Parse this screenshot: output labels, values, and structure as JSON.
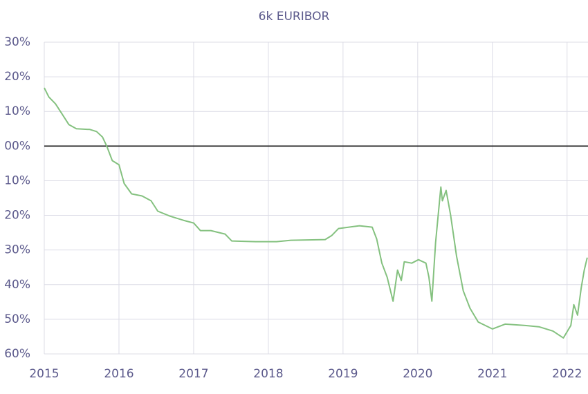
{
  "chart_data": {
    "type": "line",
    "title": "6k EURIBOR",
    "x": [
      2015.0,
      2015.06,
      2015.15,
      2015.24,
      2015.33,
      2015.43,
      2015.61,
      2015.7,
      2015.78,
      2015.84,
      2015.91,
      2016.0,
      2016.07,
      2016.17,
      2016.31,
      2016.43,
      2016.52,
      2016.68,
      2016.86,
      2017.0,
      2017.09,
      2017.23,
      2017.42,
      2017.51,
      2017.83,
      2018.11,
      2018.3,
      2018.76,
      2018.85,
      2018.94,
      2019.22,
      2019.39,
      2019.45,
      2019.52,
      2019.59,
      2019.67,
      2019.73,
      2019.78,
      2019.82,
      2019.92,
      2020.01,
      2020.11,
      2020.15,
      2020.19,
      2020.24,
      2020.31,
      2020.33,
      2020.38,
      2020.44,
      2020.52,
      2020.61,
      2020.7,
      2020.81,
      2021.0,
      2021.17,
      2021.44,
      2021.63,
      2021.81,
      2021.95,
      2022.05,
      2022.09,
      2022.14,
      2022.19,
      2022.23,
      2022.27
    ],
    "values": [
      0.168,
      0.142,
      0.122,
      0.092,
      0.062,
      0.05,
      0.048,
      0.042,
      0.026,
      -0.002,
      -0.042,
      -0.054,
      -0.108,
      -0.138,
      -0.144,
      -0.158,
      -0.188,
      -0.202,
      -0.214,
      -0.222,
      -0.244,
      -0.244,
      -0.254,
      -0.274,
      -0.276,
      -0.276,
      -0.272,
      -0.27,
      -0.258,
      -0.238,
      -0.23,
      -0.234,
      -0.268,
      -0.338,
      -0.378,
      -0.448,
      -0.358,
      -0.388,
      -0.334,
      -0.338,
      -0.328,
      -0.338,
      -0.378,
      -0.448,
      -0.278,
      -0.118,
      -0.158,
      -0.128,
      -0.198,
      -0.318,
      -0.418,
      -0.468,
      -0.508,
      -0.528,
      -0.514,
      -0.518,
      -0.522,
      -0.534,
      -0.554,
      -0.518,
      -0.458,
      -0.488,
      -0.408,
      -0.358,
      -0.322
    ],
    "color": "#84c17f",
    "xlim": [
      2015,
      2022.28
    ],
    "xticks": [
      2015,
      2016,
      2017,
      2018,
      2019,
      2020,
      2021,
      2022
    ],
    "ylim": [
      -0.6,
      0.3
    ],
    "yticks": [
      {
        "value": 0.3,
        "label": "30%"
      },
      {
        "value": 0.2,
        "label": "20%"
      },
      {
        "value": 0.1,
        "label": "10%"
      },
      {
        "value": 0,
        "label": "00%"
      },
      {
        "value": -0.1,
        "label": "10%"
      },
      {
        "value": -0.2,
        "label": "20%"
      },
      {
        "value": -0.3,
        "label": "30%"
      },
      {
        "value": -0.4,
        "label": "40%"
      },
      {
        "value": -0.5,
        "label": "50%"
      },
      {
        "value": -0.6,
        "label": "60%"
      }
    ],
    "grid": true,
    "zero_line": true
  }
}
